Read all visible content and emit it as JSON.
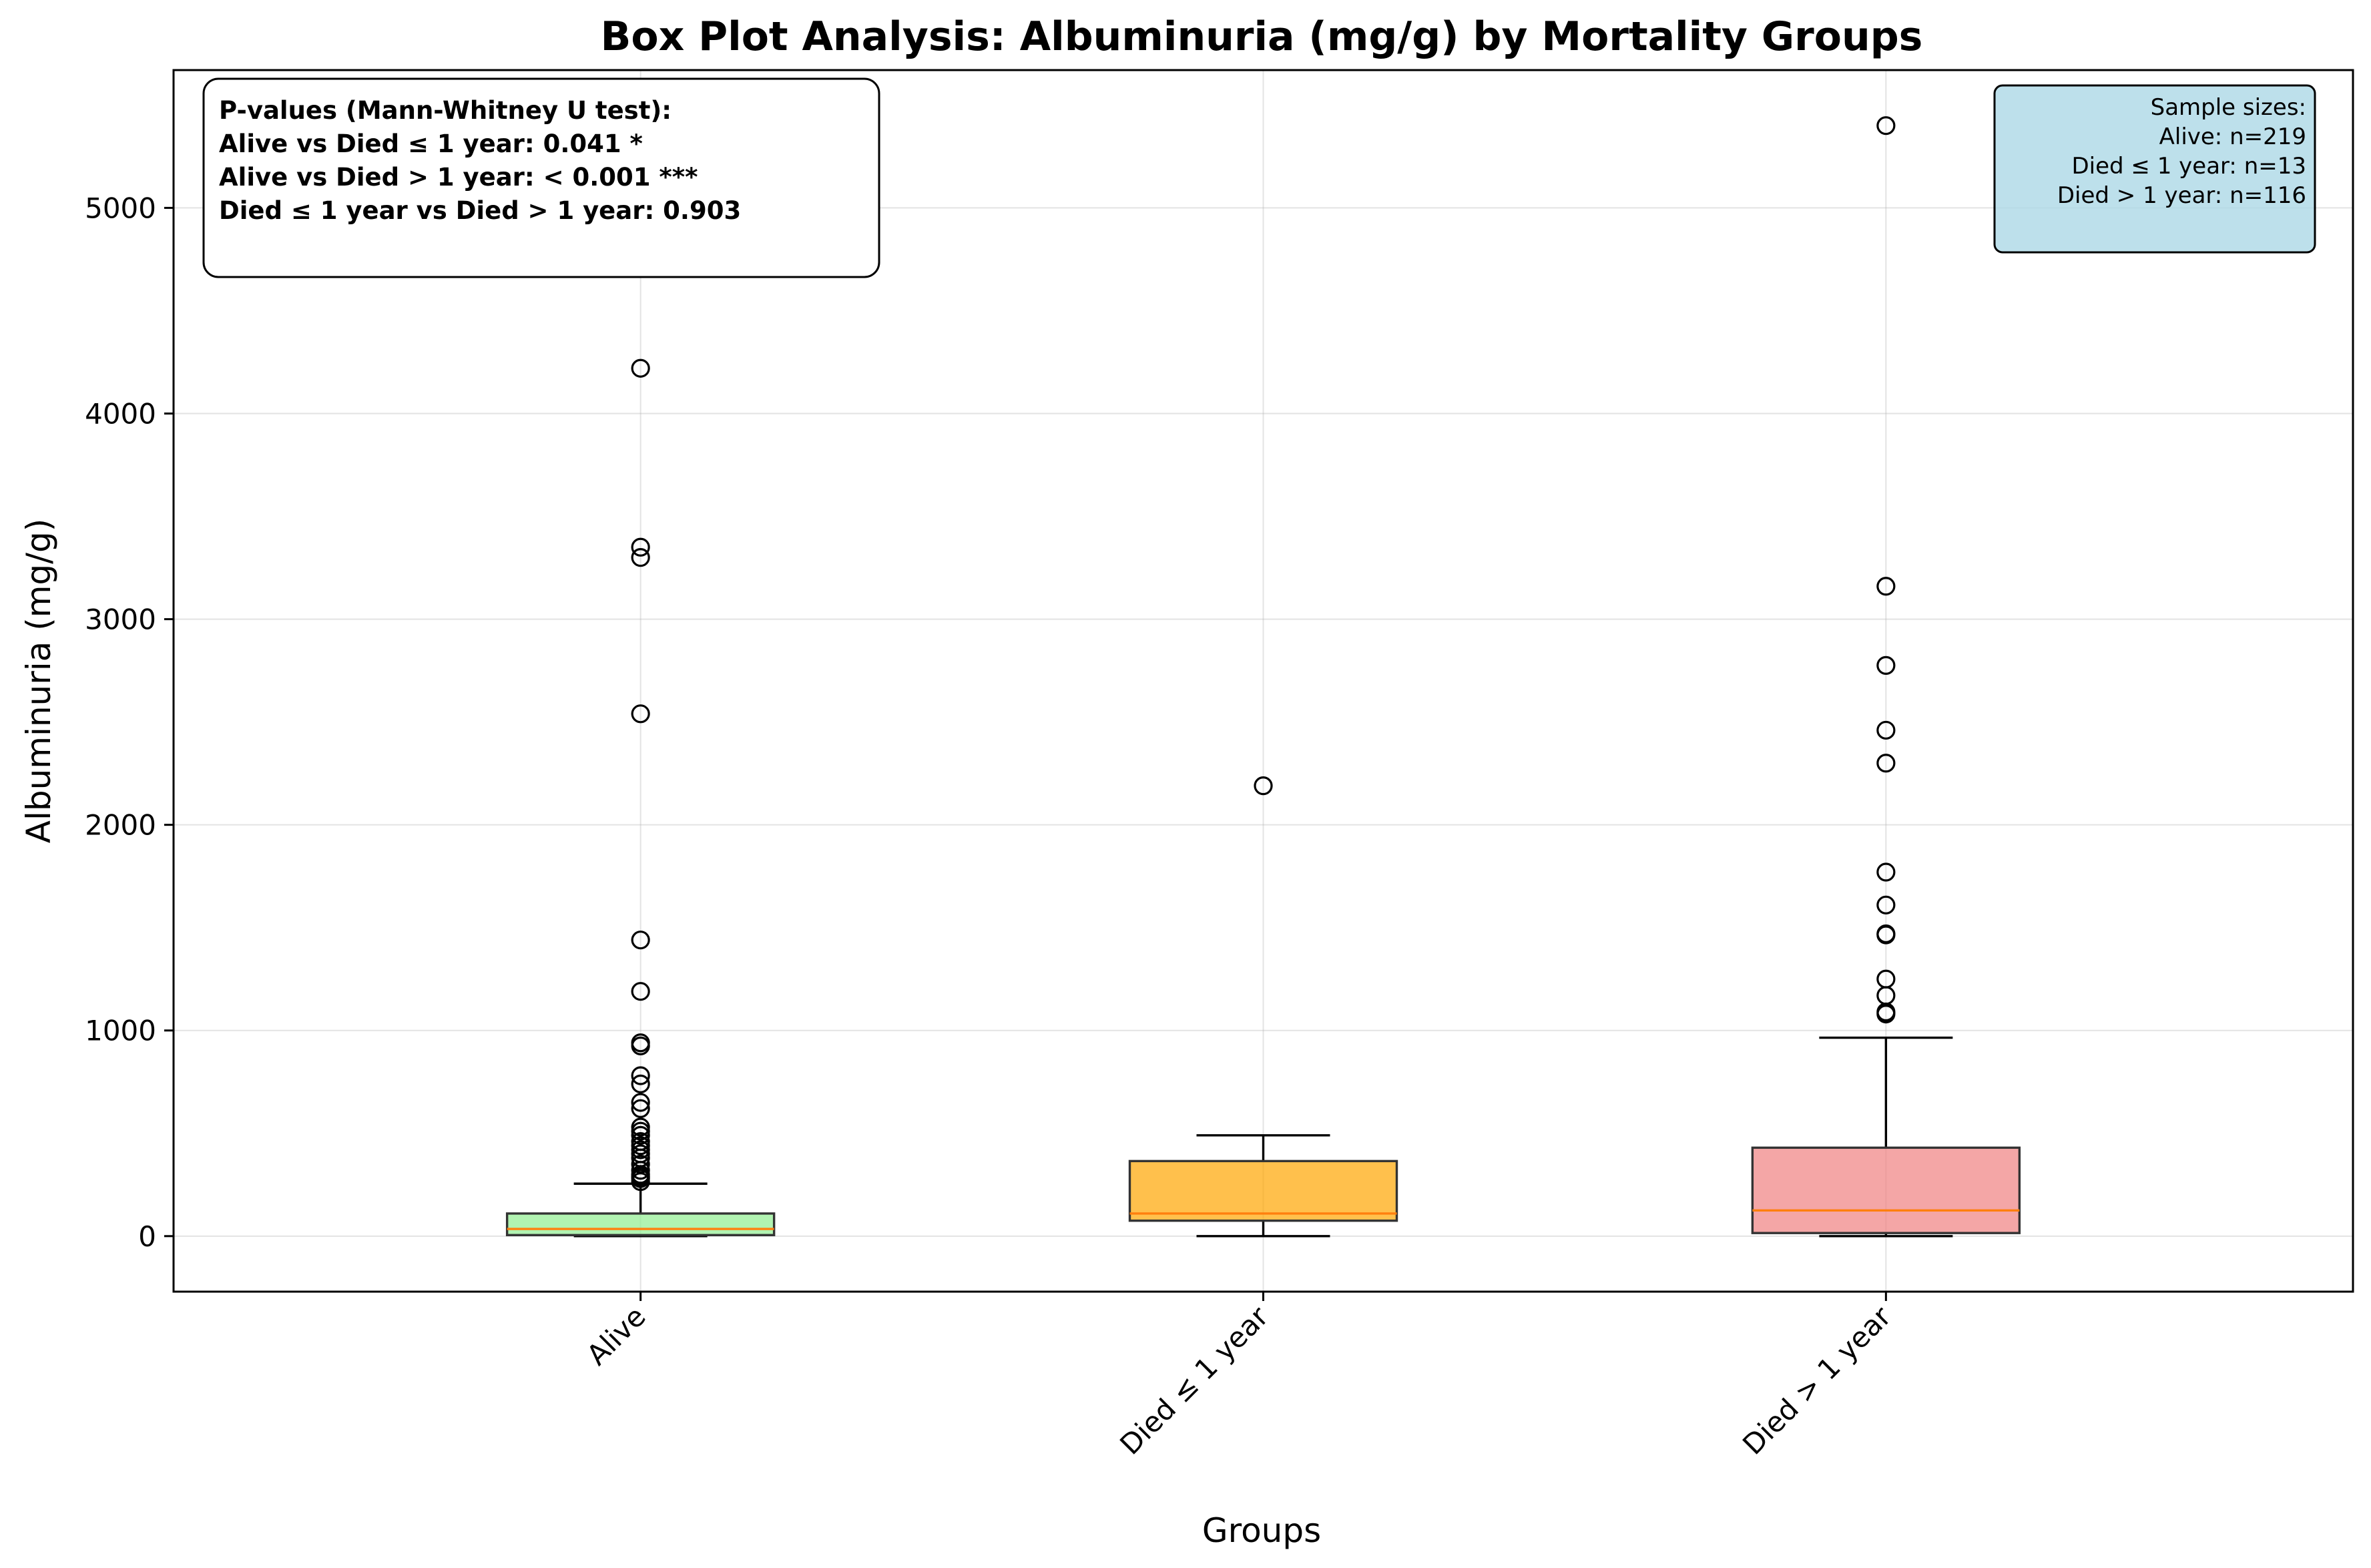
{
  "chart_data": {
    "type": "box",
    "title": "Box Plot Analysis: Albuminuria (mg/g) by Mortality Groups",
    "xlabel": "Groups",
    "ylabel": "Albuminuria (mg/g)",
    "ylim": [
      -270,
      5670
    ],
    "yticks": [
      0,
      1000,
      2000,
      3000,
      4000,
      5000
    ],
    "grid": true,
    "categories": [
      "Alive",
      "Died ≤ 1 year",
      "Died > 1 year"
    ],
    "groups": [
      {
        "name": "Alive",
        "color": "#90ee90",
        "whisker_low": 0,
        "q1": 5,
        "median": 35,
        "q3": 110,
        "whisker_high": 255,
        "outliers": [
          4220,
          3350,
          3300,
          2540,
          1440,
          1190,
          940,
          925,
          780,
          740,
          650,
          620,
          530,
          510,
          490,
          460,
          440,
          420,
          400,
          380,
          350,
          320,
          300,
          290,
          280,
          265
        ]
      },
      {
        "name": "Died ≤ 1 year",
        "color": "#ffa500",
        "whisker_low": 0,
        "q1": 75,
        "median": 110,
        "q3": 365,
        "whisker_high": 490,
        "outliers": [
          2190
        ]
      },
      {
        "name": "Died > 1 year",
        "color": "#f08080",
        "whisker_low": 0,
        "q1": 15,
        "median": 125,
        "q3": 430,
        "whisker_high": 965,
        "outliers": [
          5400,
          3160,
          2775,
          2460,
          2300,
          1770,
          1610,
          1470,
          1465,
          1250,
          1170,
          1090,
          1080
        ]
      }
    ]
  },
  "pvalue_box": {
    "lines": [
      "P-values (Mann-Whitney U test):",
      "Alive vs Died ≤ 1 year: 0.041 *",
      "Alive vs Died > 1 year: < 0.001 ***",
      "Died ≤ 1 year vs Died > 1 year: 0.903"
    ]
  },
  "sample_box": {
    "color": "#add8e6",
    "lines": [
      "Sample sizes:",
      "Alive: n=219",
      "Died ≤ 1 year: n=13",
      "Died > 1 year: n=116"
    ]
  }
}
